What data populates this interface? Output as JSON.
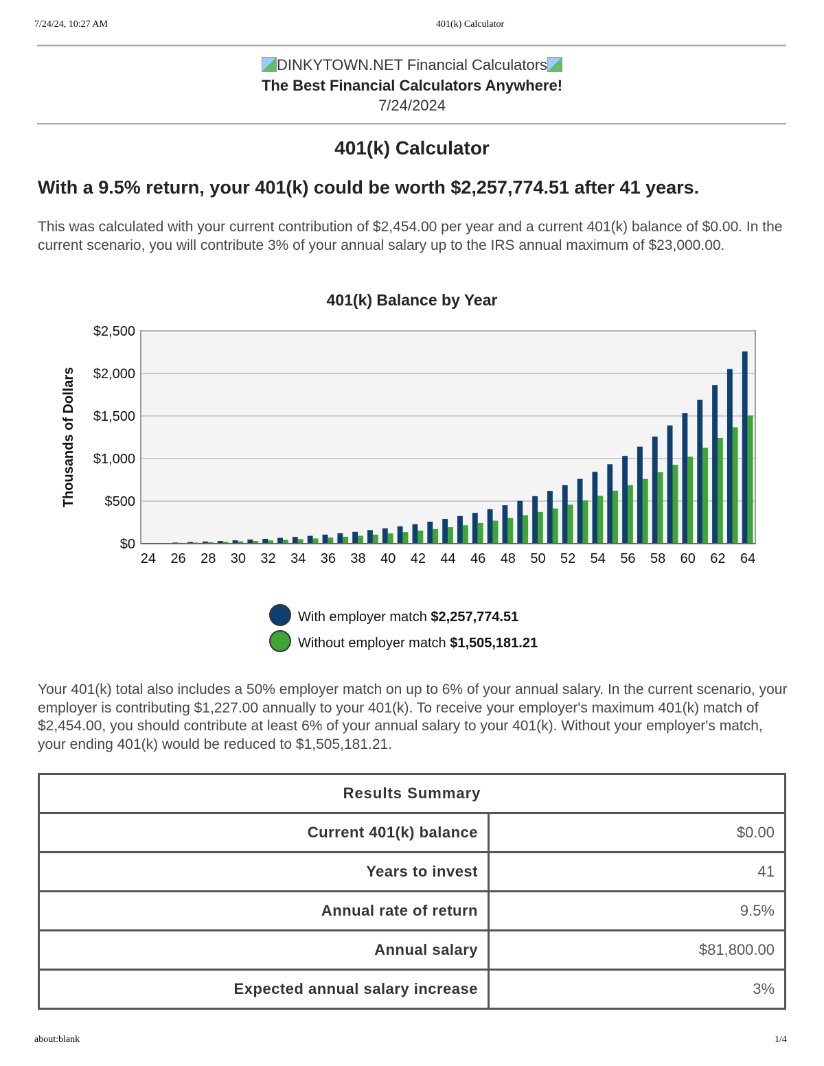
{
  "print_header": {
    "datetime": "7/24/24, 10:27 AM",
    "title": "401(k) Calculator"
  },
  "print_footer": {
    "url": "about:blank",
    "page": "1/4"
  },
  "site": {
    "logo_alt": "DINKYTOWN.NET Financial Calculators",
    "tagline": "The Best Financial Calculators Anywhere!",
    "date": "7/24/2024"
  },
  "page_title": "401(k) Calculator",
  "headline": "With a 9.5% return, your 401(k) could be worth $2,257,774.51 after 41 years.",
  "intro": "This was calculated with your current contribution of $2,454.00 per year and a current 401(k) balance of $0.00. In the current scenario, you will contribute 3% of your annual salary up to the IRS annual maximum of $23,000.00.",
  "chart_data": {
    "type": "bar",
    "title": "401(k) Balance by Year",
    "ylabel": "Thousands of Dollars",
    "xlabel": "",
    "ylim": [
      0,
      2500
    ],
    "yticks": [
      "$0",
      "$500",
      "$1,000",
      "$1,500",
      "$2,000",
      "$2,500"
    ],
    "grid": true,
    "legend_position": "bottom",
    "categories": [
      24,
      25,
      26,
      27,
      28,
      29,
      30,
      31,
      32,
      33,
      34,
      35,
      36,
      37,
      38,
      39,
      40,
      41,
      42,
      43,
      44,
      45,
      46,
      47,
      48,
      49,
      50,
      51,
      52,
      53,
      54,
      55,
      56,
      57,
      58,
      59,
      60,
      61,
      62,
      63,
      64
    ],
    "series": [
      {
        "name": "With employer match",
        "total": "$2,257,774.51",
        "color": "#0f3f6e",
        "values": [
          4,
          8,
          13,
          19,
          25,
          32,
          39,
          48,
          57,
          68,
          79,
          92,
          106,
          122,
          139,
          159,
          180,
          204,
          229,
          258,
          290,
          324,
          362,
          404,
          451,
          502,
          558,
          619,
          687,
          761,
          843,
          933,
          1031,
          1140,
          1258,
          1389,
          1532,
          1689,
          1862,
          2051,
          2257.77
        ]
      },
      {
        "name": "Without employer match",
        "total": "$1,505,181.21",
        "color": "#3fa535",
        "values": [
          3,
          5,
          9,
          12,
          16,
          21,
          26,
          32,
          38,
          45,
          53,
          61,
          71,
          81,
          93,
          106,
          120,
          136,
          153,
          172,
          193,
          216,
          242,
          270,
          301,
          334,
          372,
          413,
          458,
          508,
          562,
          622,
          688,
          760,
          839,
          926,
          1021,
          1126,
          1241,
          1367,
          1505.18
        ]
      }
    ]
  },
  "match_text": "Your 401(k) total also includes a 50% employer match on up to 6% of your annual salary. In the current scenario, your employer is contributing $1,227.00 annually to your 401(k). To receive your employer's maximum 401(k) match of $2,454.00, you should contribute at least 6% of your annual salary to your 401(k). Without your employer's match, your ending 401(k) would be reduced to $1,505,181.21.",
  "summary": {
    "title": "Results Summary",
    "rows": [
      {
        "label": "Current 401(k) balance",
        "value": "$0.00"
      },
      {
        "label": "Years to invest",
        "value": "41"
      },
      {
        "label": "Annual rate of return",
        "value": "9.5%"
      },
      {
        "label": "Annual salary",
        "value": "$81,800.00"
      },
      {
        "label": "Expected annual salary increase",
        "value": "3%"
      }
    ]
  }
}
